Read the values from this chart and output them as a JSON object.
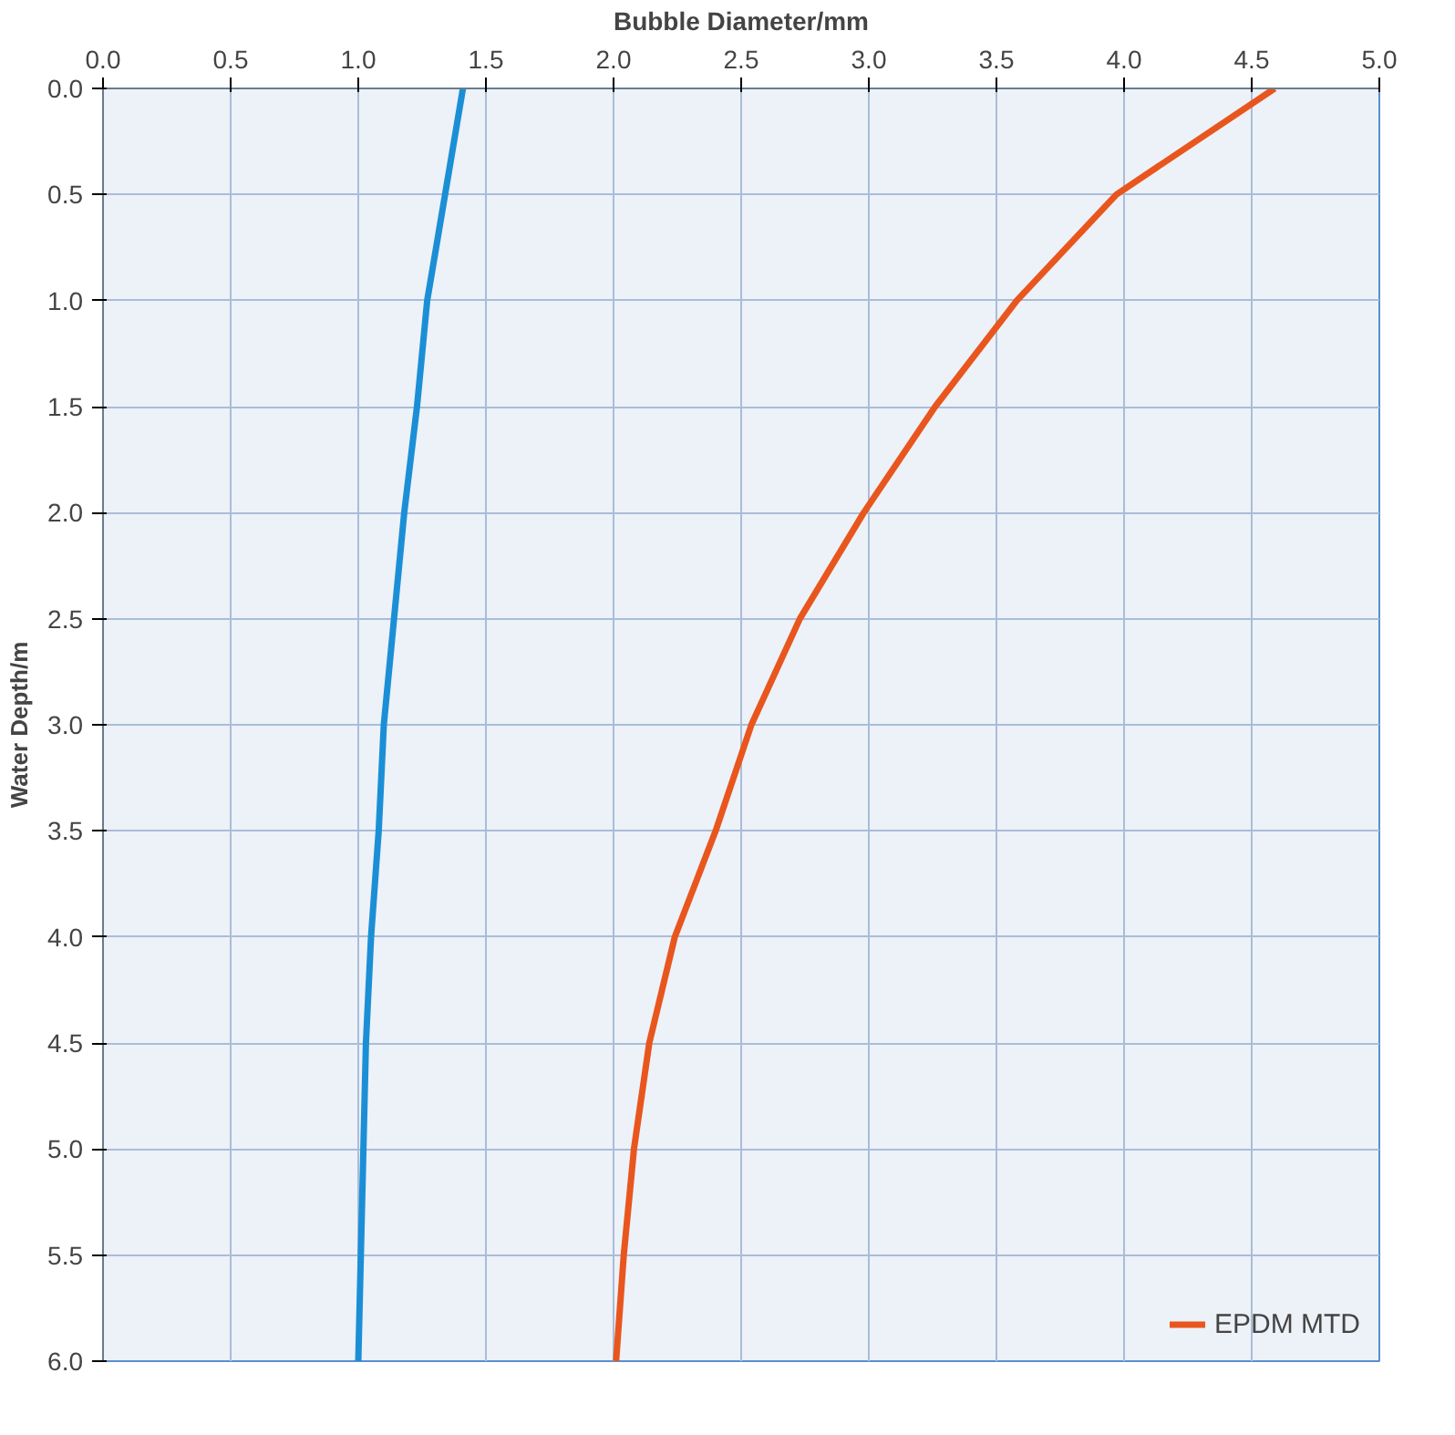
{
  "chart_data": {
    "type": "line",
    "xlabel": "Bubble Diameter/mm",
    "ylabel": "Water Depth/m",
    "xlim": [
      0,
      5
    ],
    "ylim": [
      6,
      0
    ],
    "xticks": [
      {
        "value": 0,
        "label": "0.0"
      },
      0.5,
      {
        "value": 1,
        "label": "1.0"
      },
      1.5,
      {
        "value": 2,
        "label": "2.0"
      },
      2.5,
      {
        "value": 3,
        "label": "3.0"
      },
      3.5,
      {
        "value": 4,
        "label": "4.0"
      },
      4.5,
      {
        "value": 5,
        "label": "5.0"
      }
    ],
    "yticks": [
      {
        "value": 0,
        "label": "0.0"
      },
      0.5,
      {
        "value": 1,
        "label": "1.0"
      },
      1.5,
      {
        "value": 2,
        "label": "2.0"
      },
      2.5,
      {
        "value": 3,
        "label": "3.0"
      },
      3.5,
      {
        "value": 4,
        "label": "4.0"
      },
      4.5,
      {
        "value": 5,
        "label": "5.0"
      },
      5.5,
      {
        "value": 6,
        "label": "6.0"
      }
    ],
    "grid": true,
    "legend": "bottom right",
    "series": [
      {
        "name": "EPDM MTD",
        "color": "#e8561e",
        "x": [
          4.59,
          3.97,
          3.58,
          3.26,
          2.98,
          2.73,
          2.54,
          2.4,
          2.24,
          2.14,
          2.08,
          2.04,
          2.01
        ],
        "values": [
          0,
          0.5,
          1,
          1.5,
          2,
          2.5,
          3,
          3.5,
          4,
          4.5,
          5,
          5.5,
          6
        ]
      },
      {
        "color": "#1b8fd6",
        "x": [
          1.41,
          1.34,
          1.27,
          1.23,
          1.18,
          1.14,
          1.1,
          1.08,
          1.05,
          1.03,
          1.02,
          1.01,
          1.0
        ],
        "values": [
          0,
          0.5,
          1,
          1.5,
          2,
          2.5,
          3,
          3.5,
          4,
          4.5,
          5,
          5.5,
          6
        ]
      }
    ]
  }
}
